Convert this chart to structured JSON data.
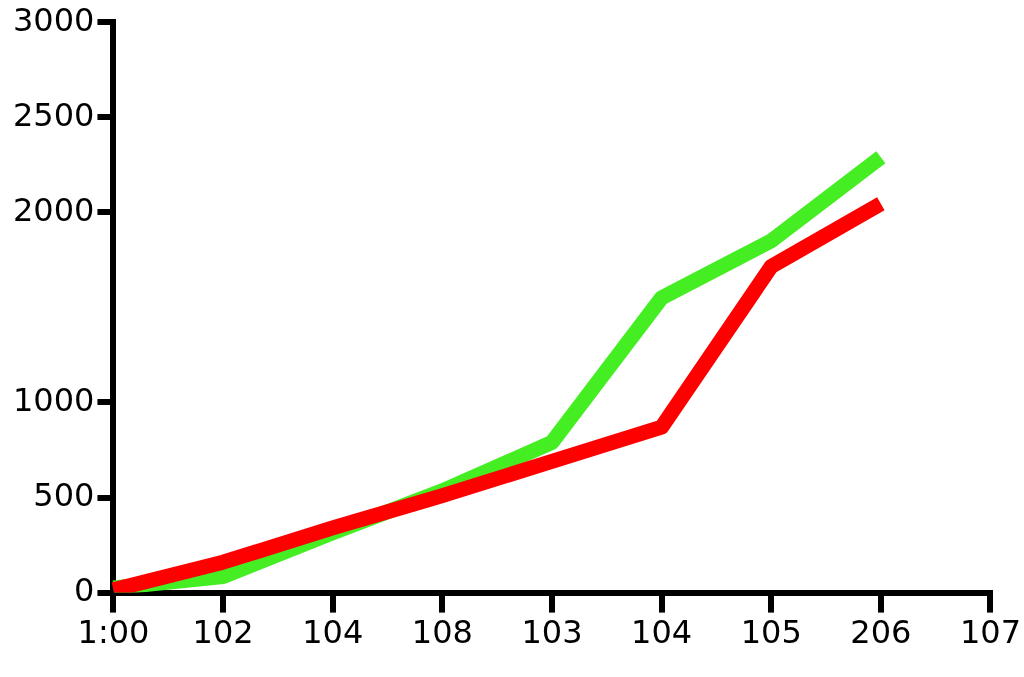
{
  "chart_data": {
    "type": "line",
    "categories": [
      "1:00",
      "102",
      "104",
      "108",
      "103",
      "104",
      "105",
      "206",
      "107"
    ],
    "ylim": [
      0,
      3000
    ],
    "yticks": [
      0,
      500,
      1000,
      2000,
      2500,
      3000
    ],
    "series": [
      {
        "color": "#ff0000",
        "values": [
          15,
          160,
          340,
          510,
          690,
          870,
          1715,
          2045,
          null
        ]
      },
      {
        "color": "#44ee22",
        "values": [
          25,
          85,
          315,
          535,
          790,
          1550,
          1850,
          2290,
          null
        ]
      }
    ],
    "grid": false,
    "legend": false,
    "marker": "none",
    "line_style": "solid"
  }
}
